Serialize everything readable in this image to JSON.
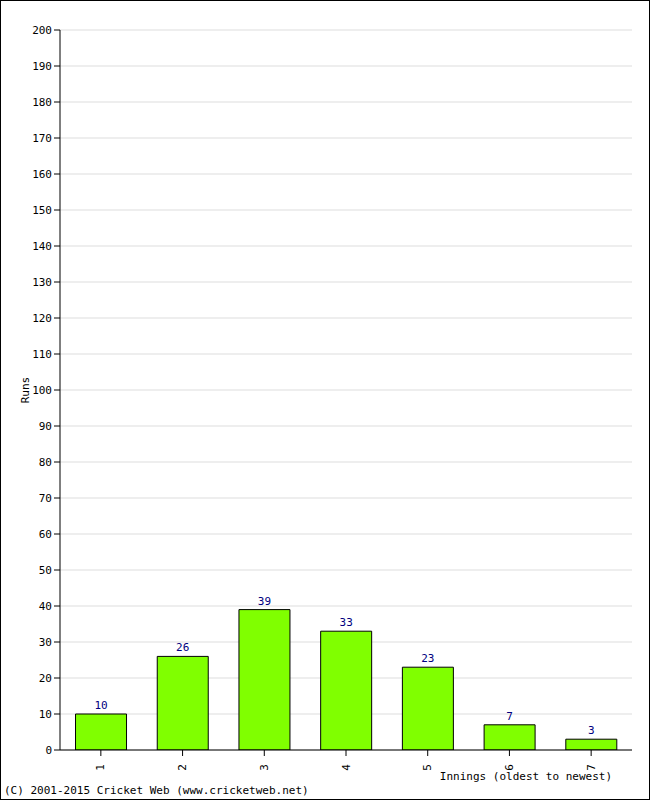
{
  "chart_data": {
    "type": "bar",
    "categories": [
      "1",
      "2",
      "3",
      "4",
      "5",
      "6",
      "7"
    ],
    "values": [
      10,
      26,
      39,
      33,
      23,
      7,
      3
    ],
    "color": "#80ff00",
    "ylim": [
      0,
      200
    ],
    "yticks": [
      0,
      10,
      20,
      30,
      40,
      50,
      60,
      70,
      80,
      90,
      100,
      110,
      120,
      130,
      140,
      150,
      160,
      170,
      180,
      190,
      200
    ],
    "grid": true,
    "data_labels": true,
    "xlabel": "Innings (oldest to newest)",
    "ylabel": "Runs",
    "annotation": "(C) 2001-2015 Cricket Web (www.cricketweb.net)"
  }
}
